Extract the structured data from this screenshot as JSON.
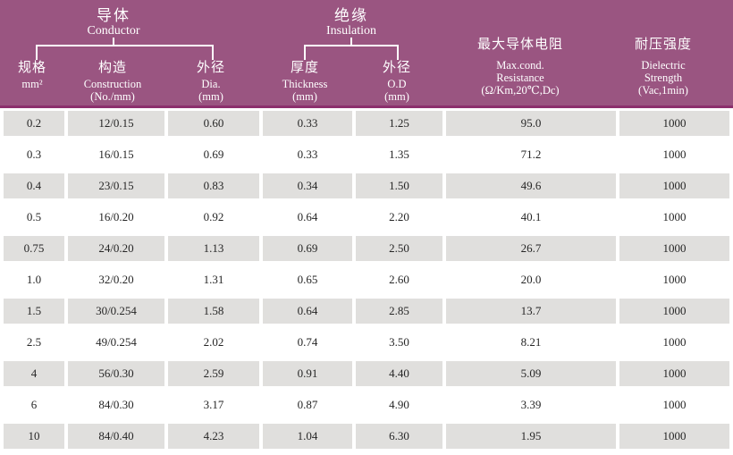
{
  "theme": {
    "header_bg": "#9a5581",
    "header_line": "#8c2f6d",
    "row_alt_bg": "#e0dfdd",
    "header_text": "#ffffff",
    "cell_text": "#262626"
  },
  "groups": {
    "conductor": {
      "zh": "导体",
      "en": "Conductor"
    },
    "insulation": {
      "zh": "绝缘",
      "en": "Insulation"
    }
  },
  "columns": [
    {
      "zh": "规格",
      "l1": "mm²"
    },
    {
      "zh": "构造",
      "l1": "Construction",
      "l2": "(No./mm)"
    },
    {
      "zh": "外径",
      "l1": "Dia.",
      "l2": "(mm)"
    },
    {
      "zh": "厚度",
      "l1": "Thickness",
      "l2": "(mm)"
    },
    {
      "zh": "外径",
      "l1": "O.D",
      "l2": "(mm)"
    },
    {
      "zh": "最大导体电阻",
      "l1": "Max.cond.",
      "l2": "Resistance",
      "l3": "(Ω/Km,20℃,Dc)"
    },
    {
      "zh": "耐压强度",
      "l1": "Dielectric",
      "l2": "Strength",
      "l3": "(Vac,1min)"
    }
  ],
  "chart_data": {
    "type": "table",
    "title": "Conductor / Insulation specification table",
    "columns": [
      "规格 mm²",
      "构造 Construction (No./mm)",
      "外径 Dia. (mm)",
      "厚度 Thickness (mm)",
      "外径 O.D (mm)",
      "最大导体电阻 Max.cond. Resistance (Ω/Km,20℃,Dc)",
      "耐压强度 Dielectric Strength (Vac,1min)"
    ],
    "rows": [
      [
        "0.2",
        "12/0.15",
        "0.60",
        "0.33",
        "1.25",
        "95.0",
        "1000"
      ],
      [
        "0.3",
        "16/0.15",
        "0.69",
        "0.33",
        "1.35",
        "71.2",
        "1000"
      ],
      [
        "0.4",
        "23/0.15",
        "0.83",
        "0.34",
        "1.50",
        "49.6",
        "1000"
      ],
      [
        "0.5",
        "16/0.20",
        "0.92",
        "0.64",
        "2.20",
        "40.1",
        "1000"
      ],
      [
        "0.75",
        "24/0.20",
        "1.13",
        "0.69",
        "2.50",
        "26.7",
        "1000"
      ],
      [
        "1.0",
        "32/0.20",
        "1.31",
        "0.65",
        "2.60",
        "20.0",
        "1000"
      ],
      [
        "1.5",
        "30/0.254",
        "1.58",
        "0.64",
        "2.85",
        "13.7",
        "1000"
      ],
      [
        "2.5",
        "49/0.254",
        "2.02",
        "0.74",
        "3.50",
        "8.21",
        "1000"
      ],
      [
        "4",
        "56/0.30",
        "2.59",
        "0.91",
        "4.40",
        "5.09",
        "1000"
      ],
      [
        "6",
        "84/0.30",
        "3.17",
        "0.87",
        "4.90",
        "3.39",
        "1000"
      ],
      [
        "10",
        "84/0.40",
        "4.23",
        "1.04",
        "6.30",
        "1.95",
        "1000"
      ]
    ]
  }
}
